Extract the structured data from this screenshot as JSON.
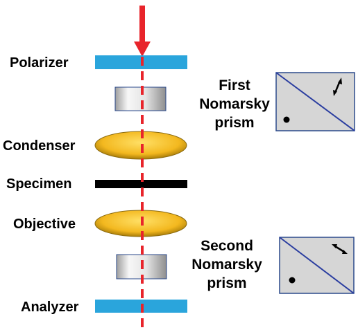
{
  "labels": {
    "polarizer": "Polarizer",
    "condenser": "Condenser",
    "specimen": "Specimen",
    "objective": "Objective",
    "analyzer": "Analyzer"
  },
  "first_prism": {
    "line1": "First",
    "line2": "Nomarsky",
    "line3": "prism"
  },
  "second_prism": {
    "line1": "Second",
    "line2": "Nomarsky",
    "line3": "prism"
  },
  "colors": {
    "beam": "#e8242b",
    "polarizer": "#2aa5dc",
    "analyzer": "#2aa5dc",
    "lens": "#f3b81f",
    "specimen": "#000000",
    "prism_fill": "#d6d6d6",
    "prism_border": "#2b4a8c",
    "prism_diagonal": "#2b3ea0"
  }
}
